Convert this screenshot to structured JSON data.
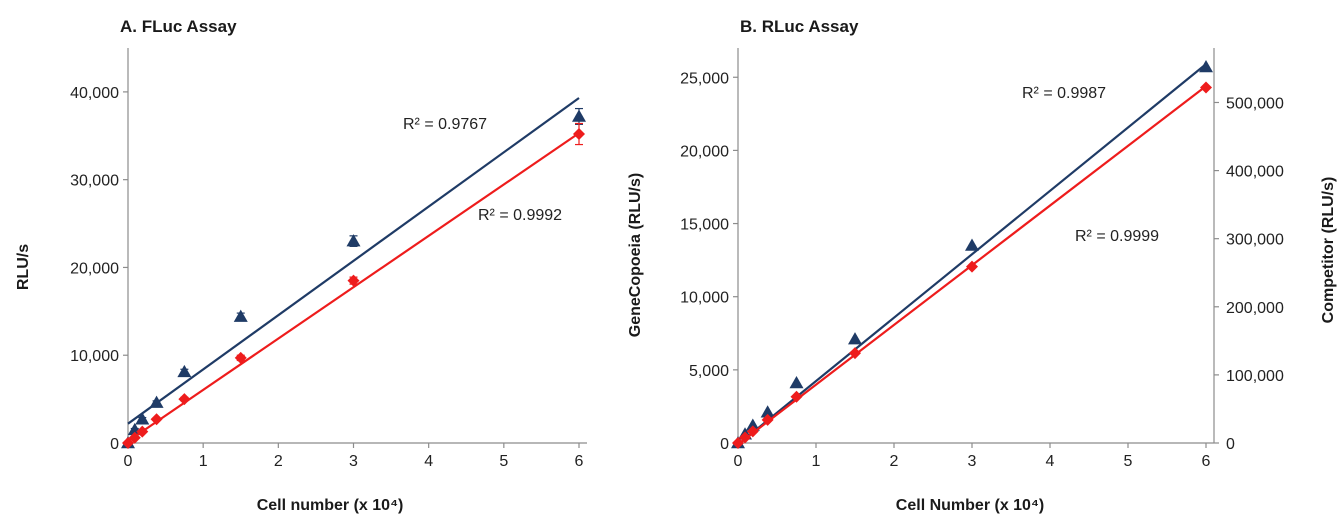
{
  "chart_data": [
    {
      "type": "scatter",
      "title": "A. FLuc Assay",
      "xlabel": "Cell number (x 10⁴)",
      "ylabel": "RLU/s",
      "xlim": [
        0,
        6
      ],
      "ylim": [
        0,
        45000
      ],
      "xticks": [
        "0",
        "1",
        "2",
        "3",
        "4",
        "5",
        "6"
      ],
      "yticks": [
        "0",
        "10,000",
        "20,000",
        "30,000",
        "40,000"
      ],
      "grid": false,
      "series": [
        {
          "color": "#1f3b66",
          "marker": "triangle",
          "x": [
            0,
            0.09,
            0.19,
            0.38,
            0.75,
            1.5,
            3,
            6
          ],
          "y": [
            0,
            1500,
            2700,
            4600,
            8100,
            14400,
            23000,
            37200
          ],
          "err": [
            0,
            150,
            200,
            200,
            300,
            400,
            600,
            900
          ],
          "trendline": {
            "x": [
              0,
              6
            ],
            "y": [
              2200,
              39300
            ]
          },
          "r2": "R² = 0.9767"
        },
        {
          "color": "#ee1c1c",
          "marker": "diamond",
          "x": [
            0,
            0.09,
            0.19,
            0.38,
            0.75,
            1.5,
            3,
            6
          ],
          "y": [
            0,
            600,
            1300,
            2700,
            5000,
            9700,
            18500,
            35200
          ],
          "err": [
            0,
            100,
            100,
            150,
            200,
            300,
            400,
            1200
          ],
          "trendline": {
            "x": [
              0,
              6
            ],
            "y": [
              200,
              35300
            ]
          },
          "r2": "R² = 0.9992"
        }
      ]
    },
    {
      "type": "scatter",
      "title": "B. RLuc Assay",
      "xlabel": "Cell Number (x 10⁴)",
      "ylabel": "GeneCopoeia (RLU/s)",
      "y2label": "Competitor (RLU/s)",
      "xlim": [
        0,
        6
      ],
      "ylim": [
        0,
        27000
      ],
      "y2lim": [
        0,
        580000
      ],
      "xticks": [
        "0",
        "1",
        "2",
        "3",
        "4",
        "5",
        "6"
      ],
      "yticks": [
        "0",
        "5,000",
        "10,000",
        "15,000",
        "20,000",
        "25,000"
      ],
      "y2ticks": [
        "0",
        "100,000",
        "200,000",
        "300,000",
        "400,000",
        "500,000"
      ],
      "grid": false,
      "series": [
        {
          "color": "#1f3b66",
          "marker": "triangle",
          "axis": "left",
          "x": [
            0,
            0.09,
            0.19,
            0.38,
            0.75,
            1.5,
            3,
            6
          ],
          "y": [
            0,
            600,
            1200,
            2100,
            4100,
            7100,
            13500,
            25700
          ],
          "trendline": {
            "x": [
              0,
              6
            ],
            "y": [
              -100,
              25900
            ]
          },
          "r2": "R² = 0.9987"
        },
        {
          "color": "#ee1c1c",
          "marker": "diamond",
          "axis": "right",
          "x": [
            0,
            0.09,
            0.19,
            0.38,
            0.75,
            1.5,
            3,
            6
          ],
          "y": [
            0,
            8000,
            17000,
            34000,
            68000,
            132000,
            259000,
            522000
          ],
          "trendline": {
            "x": [
              0,
              6
            ],
            "y": [
              -2000,
              524000
            ]
          },
          "r2": "R² = 0.9999"
        }
      ]
    }
  ]
}
